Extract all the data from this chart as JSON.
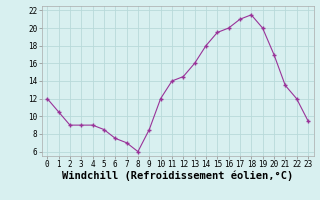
{
  "x": [
    0,
    1,
    2,
    3,
    4,
    5,
    6,
    7,
    8,
    9,
    10,
    11,
    12,
    13,
    14,
    15,
    16,
    17,
    18,
    19,
    20,
    21,
    22,
    23
  ],
  "y": [
    12,
    10.5,
    9,
    9,
    9,
    8.5,
    7.5,
    7,
    6,
    8.5,
    12,
    14,
    14.5,
    16,
    18,
    19.5,
    20,
    21,
    21.5,
    20,
    17,
    13.5,
    12,
    9.5
  ],
  "line_color": "#993399",
  "marker_color": "#993399",
  "bg_color": "#d8f0f0",
  "grid_color": "#b8dada",
  "xlabel": "Windchill (Refroidissement éolien,°C)",
  "xlim": [
    -0.5,
    23.5
  ],
  "ylim": [
    5.5,
    22.5
  ],
  "yticks": [
    6,
    8,
    10,
    12,
    14,
    16,
    18,
    20,
    22
  ],
  "xticks": [
    0,
    1,
    2,
    3,
    4,
    5,
    6,
    7,
    8,
    9,
    10,
    11,
    12,
    13,
    14,
    15,
    16,
    17,
    18,
    19,
    20,
    21,
    22,
    23
  ],
  "tick_fontsize": 5.5,
  "xlabel_fontsize": 7.5
}
